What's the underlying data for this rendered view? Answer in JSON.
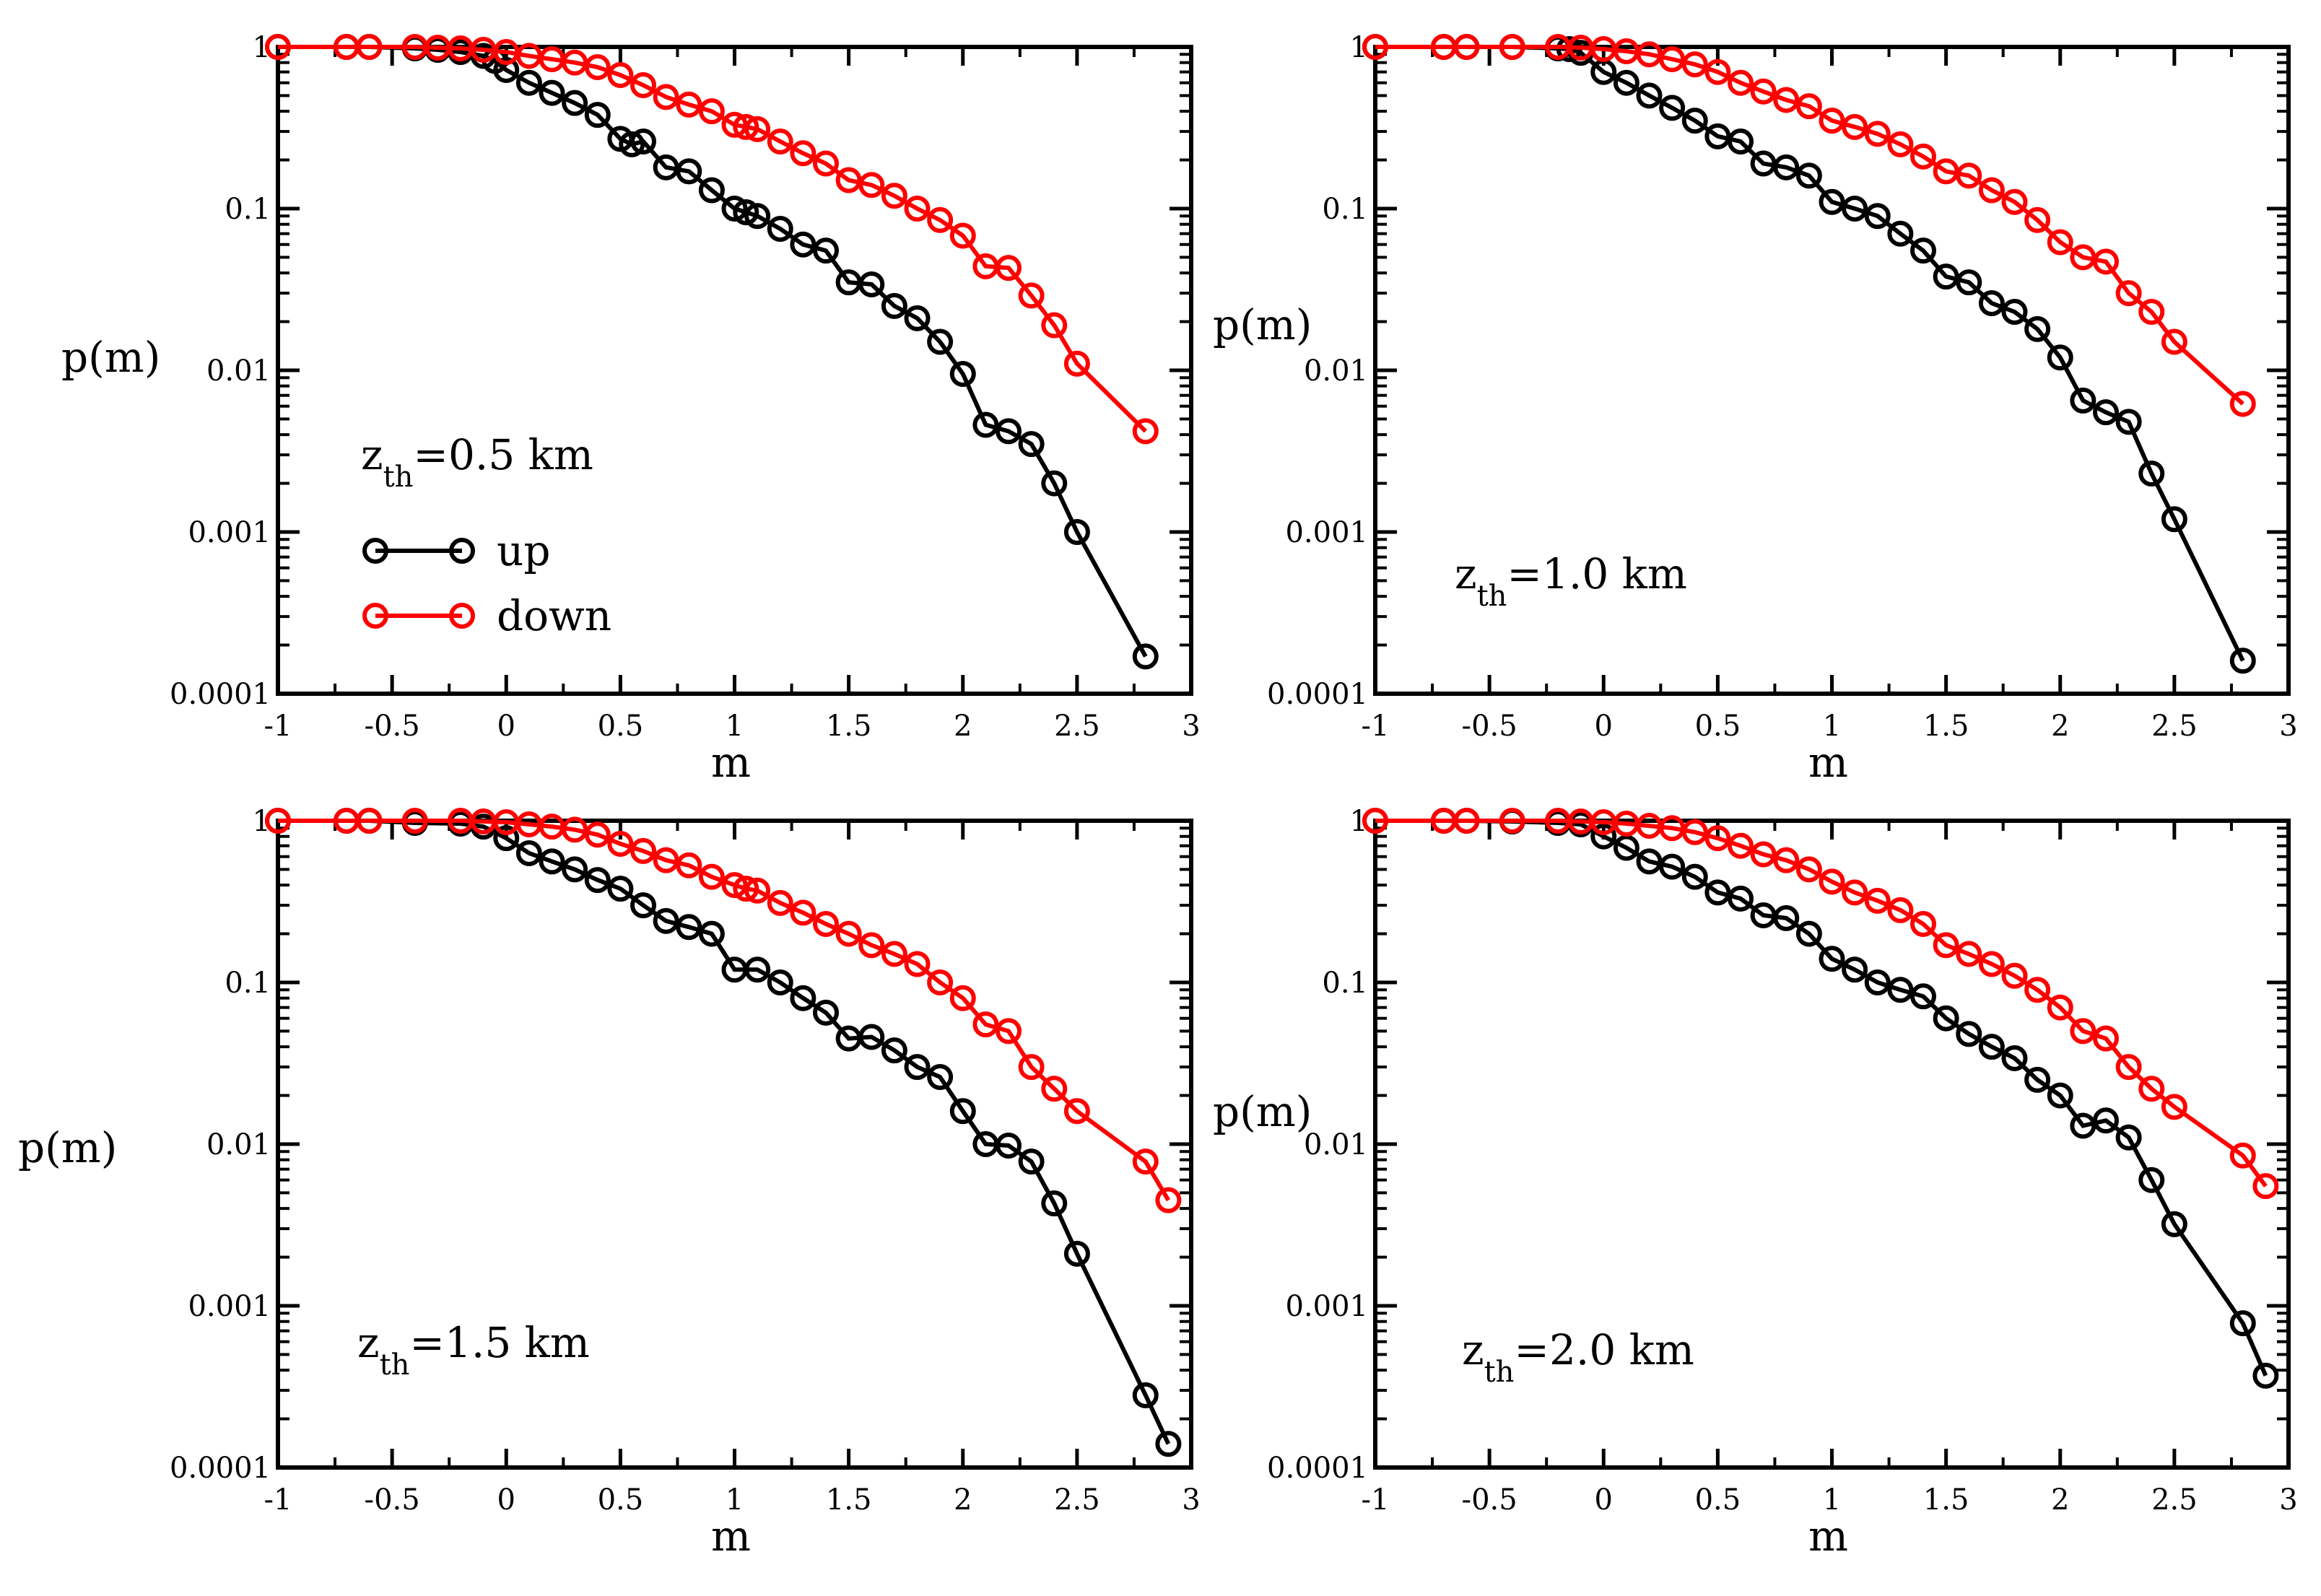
{
  "chart_data": [
    {
      "type": "line",
      "xlabel": "m",
      "ylabel": "p(m)",
      "yscale": "log",
      "xlim": [
        -1,
        3
      ],
      "ylim": [
        0.0001,
        1
      ],
      "xticks": [
        "-1",
        "-0.5",
        "0",
        "0.5",
        "1",
        "1.5",
        "2",
        "2.5",
        "3"
      ],
      "yticks": [
        "0.0001",
        "0.001",
        "0.01",
        "0.1",
        "1"
      ],
      "annotation": {
        "base": "z",
        "sub": "th",
        "rest": "=0.5 km"
      },
      "legend": [
        "up",
        "down"
      ],
      "series": [
        {
          "name": "up",
          "color": "#000000",
          "x": [
            -1.0,
            -0.7,
            -0.6,
            -0.4,
            -0.3,
            -0.2,
            -0.1,
            -0.05,
            0.0,
            0.1,
            0.2,
            0.3,
            0.4,
            0.5,
            0.55,
            0.6,
            0.7,
            0.8,
            0.9,
            1.0,
            1.05,
            1.1,
            1.2,
            1.3,
            1.4,
            1.5,
            1.6,
            1.7,
            1.8,
            1.9,
            2.0,
            2.1,
            2.2,
            2.3,
            2.4,
            2.5,
            2.8
          ],
          "y": [
            1.0,
            1.0,
            1.0,
            0.98,
            0.96,
            0.93,
            0.88,
            0.82,
            0.72,
            0.6,
            0.52,
            0.45,
            0.38,
            0.27,
            0.25,
            0.26,
            0.18,
            0.17,
            0.13,
            0.1,
            0.095,
            0.09,
            0.075,
            0.06,
            0.055,
            0.035,
            0.034,
            0.025,
            0.021,
            0.015,
            0.0095,
            0.0046,
            0.0042,
            0.0035,
            0.002,
            0.001,
            0.00017
          ]
        },
        {
          "name": "down",
          "color": "#ff0000",
          "x": [
            -1.0,
            -0.7,
            -0.6,
            -0.4,
            -0.3,
            -0.2,
            -0.1,
            0.0,
            0.1,
            0.2,
            0.3,
            0.4,
            0.5,
            0.6,
            0.7,
            0.8,
            0.9,
            1.0,
            1.05,
            1.1,
            1.2,
            1.3,
            1.4,
            1.5,
            1.6,
            1.7,
            1.8,
            1.9,
            2.0,
            2.1,
            2.2,
            2.3,
            2.4,
            2.5,
            2.8
          ],
          "y": [
            1.0,
            1.0,
            1.0,
            1.0,
            0.99,
            0.98,
            0.96,
            0.93,
            0.88,
            0.84,
            0.8,
            0.75,
            0.67,
            0.58,
            0.49,
            0.44,
            0.4,
            0.33,
            0.32,
            0.31,
            0.26,
            0.22,
            0.19,
            0.15,
            0.14,
            0.12,
            0.1,
            0.085,
            0.068,
            0.044,
            0.043,
            0.029,
            0.019,
            0.011,
            0.0042
          ]
        }
      ]
    },
    {
      "type": "line",
      "xlabel": "m",
      "ylabel": "p(m)",
      "yscale": "log",
      "xlim": [
        -1,
        3
      ],
      "ylim": [
        0.0001,
        1
      ],
      "xticks": [
        "-1",
        "-0.5",
        "0",
        "0.5",
        "1",
        "1.5",
        "2",
        "2.5",
        "3"
      ],
      "yticks": [
        "0.0001",
        "0.001",
        "0.01",
        "0.1",
        "1"
      ],
      "annotation": {
        "base": "z",
        "sub": "th",
        "rest": "=1.0 km"
      },
      "series": [
        {
          "name": "up",
          "color": "#000000",
          "x": [
            -1.0,
            -0.7,
            -0.6,
            -0.4,
            -0.2,
            -0.15,
            -0.1,
            0.0,
            0.1,
            0.2,
            0.3,
            0.4,
            0.5,
            0.6,
            0.7,
            0.8,
            0.9,
            1.0,
            1.1,
            1.2,
            1.3,
            1.4,
            1.5,
            1.6,
            1.7,
            1.8,
            1.9,
            2.0,
            2.1,
            2.2,
            2.3,
            2.4,
            2.5,
            2.8
          ],
          "y": [
            1.0,
            1.0,
            1.0,
            1.0,
            0.98,
            0.97,
            0.92,
            0.7,
            0.6,
            0.5,
            0.42,
            0.35,
            0.28,
            0.26,
            0.19,
            0.18,
            0.16,
            0.11,
            0.1,
            0.09,
            0.07,
            0.055,
            0.038,
            0.035,
            0.026,
            0.023,
            0.018,
            0.012,
            0.0065,
            0.0055,
            0.0048,
            0.0023,
            0.0012,
            0.00016
          ]
        },
        {
          "name": "down",
          "color": "#ff0000",
          "x": [
            -1.0,
            -0.7,
            -0.6,
            -0.4,
            -0.2,
            -0.1,
            0.0,
            0.1,
            0.2,
            0.3,
            0.4,
            0.5,
            0.6,
            0.7,
            0.8,
            0.9,
            1.0,
            1.1,
            1.2,
            1.3,
            1.4,
            1.5,
            1.6,
            1.7,
            1.8,
            1.9,
            2.0,
            2.1,
            2.2,
            2.3,
            2.4,
            2.5,
            2.8
          ],
          "y": [
            1.0,
            1.0,
            1.0,
            1.0,
            1.0,
            0.99,
            0.97,
            0.94,
            0.9,
            0.84,
            0.78,
            0.7,
            0.6,
            0.53,
            0.47,
            0.43,
            0.35,
            0.32,
            0.29,
            0.25,
            0.21,
            0.17,
            0.16,
            0.13,
            0.11,
            0.085,
            0.062,
            0.05,
            0.047,
            0.03,
            0.023,
            0.015,
            0.0062
          ]
        }
      ]
    },
    {
      "type": "line",
      "xlabel": "m",
      "ylabel": "p(m)",
      "yscale": "log",
      "xlim": [
        -1,
        3
      ],
      "ylim": [
        0.0001,
        1
      ],
      "xticks": [
        "-1",
        "-0.5",
        "0",
        "0.5",
        "1",
        "1.5",
        "2",
        "2.5",
        "3"
      ],
      "yticks": [
        "0.0001",
        "0.001",
        "0.01",
        "0.1",
        "1"
      ],
      "annotation": {
        "base": "z",
        "sub": "th",
        "rest": "=1.5 km"
      },
      "series": [
        {
          "name": "up",
          "color": "#000000",
          "x": [
            -1.0,
            -0.7,
            -0.6,
            -0.4,
            -0.2,
            -0.1,
            0.0,
            0.1,
            0.2,
            0.3,
            0.4,
            0.5,
            0.6,
            0.7,
            0.8,
            0.9,
            1.0,
            1.1,
            1.2,
            1.3,
            1.4,
            1.5,
            1.6,
            1.7,
            1.8,
            1.9,
            2.0,
            2.1,
            2.2,
            2.3,
            2.4,
            2.5,
            2.8,
            2.9
          ],
          "y": [
            1.0,
            1.0,
            1.0,
            0.97,
            0.96,
            0.92,
            0.78,
            0.63,
            0.56,
            0.5,
            0.43,
            0.38,
            0.3,
            0.24,
            0.22,
            0.2,
            0.12,
            0.12,
            0.1,
            0.08,
            0.065,
            0.045,
            0.046,
            0.038,
            0.03,
            0.026,
            0.016,
            0.01,
            0.0098,
            0.0078,
            0.0043,
            0.0021,
            0.00028,
            0.00014
          ]
        },
        {
          "name": "down",
          "color": "#ff0000",
          "x": [
            -1.0,
            -0.7,
            -0.6,
            -0.4,
            -0.2,
            -0.1,
            0.0,
            0.1,
            0.2,
            0.3,
            0.4,
            0.5,
            0.6,
            0.7,
            0.8,
            0.9,
            1.0,
            1.05,
            1.1,
            1.2,
            1.3,
            1.4,
            1.5,
            1.6,
            1.7,
            1.8,
            1.9,
            2.0,
            2.1,
            2.2,
            2.3,
            2.4,
            2.5,
            2.8,
            2.9
          ],
          "y": [
            1.0,
            1.0,
            1.0,
            1.0,
            1.0,
            0.99,
            0.98,
            0.95,
            0.92,
            0.88,
            0.82,
            0.72,
            0.65,
            0.57,
            0.53,
            0.45,
            0.4,
            0.38,
            0.37,
            0.31,
            0.27,
            0.23,
            0.2,
            0.17,
            0.15,
            0.13,
            0.1,
            0.08,
            0.055,
            0.05,
            0.03,
            0.022,
            0.016,
            0.0078,
            0.0045
          ]
        }
      ]
    },
    {
      "type": "line",
      "xlabel": "m",
      "ylabel": "p(m)",
      "yscale": "log",
      "xlim": [
        -1,
        3
      ],
      "ylim": [
        0.0001,
        1
      ],
      "xticks": [
        "-1",
        "-0.5",
        "0",
        "0.5",
        "1",
        "1.5",
        "2",
        "2.5",
        "3"
      ],
      "yticks": [
        "0.0001",
        "0.001",
        "0.01",
        "0.1",
        "1"
      ],
      "annotation": {
        "base": "z",
        "sub": "th",
        "rest": "=2.0 km"
      },
      "series": [
        {
          "name": "up",
          "color": "#000000",
          "x": [
            -1.0,
            -0.7,
            -0.6,
            -0.4,
            -0.2,
            -0.1,
            0.0,
            0.1,
            0.2,
            0.3,
            0.4,
            0.5,
            0.6,
            0.7,
            0.8,
            0.9,
            1.0,
            1.1,
            1.2,
            1.3,
            1.4,
            1.5,
            1.6,
            1.7,
            1.8,
            1.9,
            2.0,
            2.1,
            2.2,
            2.3,
            2.4,
            2.5,
            2.8,
            2.9
          ],
          "y": [
            1.0,
            1.0,
            1.0,
            0.99,
            0.97,
            0.95,
            0.8,
            0.68,
            0.56,
            0.52,
            0.45,
            0.36,
            0.33,
            0.26,
            0.25,
            0.2,
            0.14,
            0.12,
            0.1,
            0.09,
            0.082,
            0.06,
            0.048,
            0.04,
            0.034,
            0.025,
            0.02,
            0.013,
            0.014,
            0.011,
            0.006,
            0.0032,
            0.00078,
            0.00037
          ]
        },
        {
          "name": "down",
          "color": "#ff0000",
          "x": [
            -1.0,
            -0.7,
            -0.6,
            -0.4,
            -0.2,
            -0.1,
            0.0,
            0.1,
            0.2,
            0.3,
            0.4,
            0.5,
            0.6,
            0.7,
            0.8,
            0.9,
            1.0,
            1.1,
            1.2,
            1.3,
            1.4,
            1.5,
            1.6,
            1.7,
            1.8,
            1.9,
            2.0,
            2.1,
            2.2,
            2.3,
            2.4,
            2.5,
            2.8,
            2.9
          ],
          "y": [
            1.0,
            1.0,
            1.0,
            1.0,
            1.0,
            0.99,
            0.98,
            0.96,
            0.93,
            0.9,
            0.85,
            0.78,
            0.7,
            0.62,
            0.57,
            0.5,
            0.42,
            0.36,
            0.32,
            0.28,
            0.23,
            0.17,
            0.15,
            0.13,
            0.11,
            0.09,
            0.07,
            0.05,
            0.045,
            0.03,
            0.022,
            0.017,
            0.0085,
            0.0055
          ]
        }
      ]
    }
  ]
}
